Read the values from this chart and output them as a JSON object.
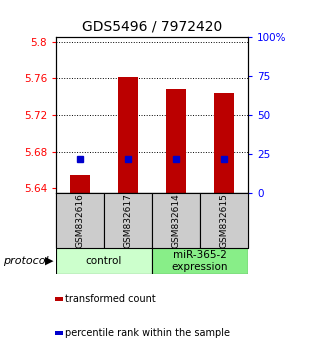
{
  "title": "GDS5496 / 7972420",
  "samples": [
    "GSM832616",
    "GSM832617",
    "GSM832614",
    "GSM832615"
  ],
  "red_values": [
    5.655,
    5.762,
    5.748,
    5.744
  ],
  "blue_values": [
    22,
    22,
    22,
    22
  ],
  "ylim_left": [
    5.635,
    5.805
  ],
  "ylim_right": [
    0,
    100
  ],
  "yticks_left": [
    5.64,
    5.68,
    5.72,
    5.76,
    5.8
  ],
  "yticks_right": [
    0,
    25,
    50,
    75,
    100
  ],
  "ytick_labels_right": [
    "0",
    "25",
    "50",
    "75",
    "100%"
  ],
  "bar_color": "#bb0000",
  "dot_color": "#0000cc",
  "bar_baseline": 5.635,
  "groups": [
    {
      "label": "control",
      "color": "#ccffcc"
    },
    {
      "label": "miR-365-2\nexpression",
      "color": "#88ee88"
    }
  ],
  "legend_items": [
    {
      "color": "#bb0000",
      "label": "transformed count"
    },
    {
      "color": "#0000cc",
      "label": "percentile rank within the sample"
    }
  ],
  "protocol_label": "protocol",
  "sample_box_color": "#cccccc",
  "title_fontsize": 10,
  "tick_fontsize": 7.5,
  "sample_fontsize": 6.5,
  "group_fontsize": 7.5,
  "legend_fontsize": 7,
  "protocol_fontsize": 8
}
